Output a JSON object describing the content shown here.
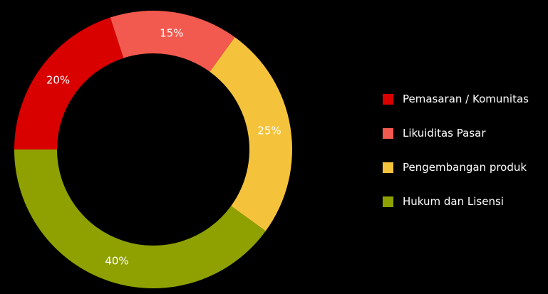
{
  "chart_data": {
    "type": "pie",
    "donut": true,
    "title": "",
    "legend_position": "right",
    "slices": [
      {
        "name": "Hukum dan Lisensi",
        "value": 40,
        "label": "40%",
        "color": "#8ea100"
      },
      {
        "name": "Pemasaran / Komunitas",
        "value": 20,
        "label": "20%",
        "color": "#d90000"
      },
      {
        "name": "Likuiditas Pasar",
        "value": 15,
        "label": "15%",
        "color": "#f2594f"
      },
      {
        "name": "Pengembangan produk",
        "value": 25,
        "label": "25%",
        "color": "#f5c33b"
      }
    ]
  },
  "legend": {
    "items": [
      {
        "label": "Pemasaran / Komunitas",
        "color": "#d90000"
      },
      {
        "label": "Likuiditas Pasar",
        "color": "#f2594f"
      },
      {
        "label": "Pengembangan produk",
        "color": "#f5c33b"
      },
      {
        "label": "Hukum dan Lisensi",
        "color": "#8ea100"
      }
    ]
  }
}
